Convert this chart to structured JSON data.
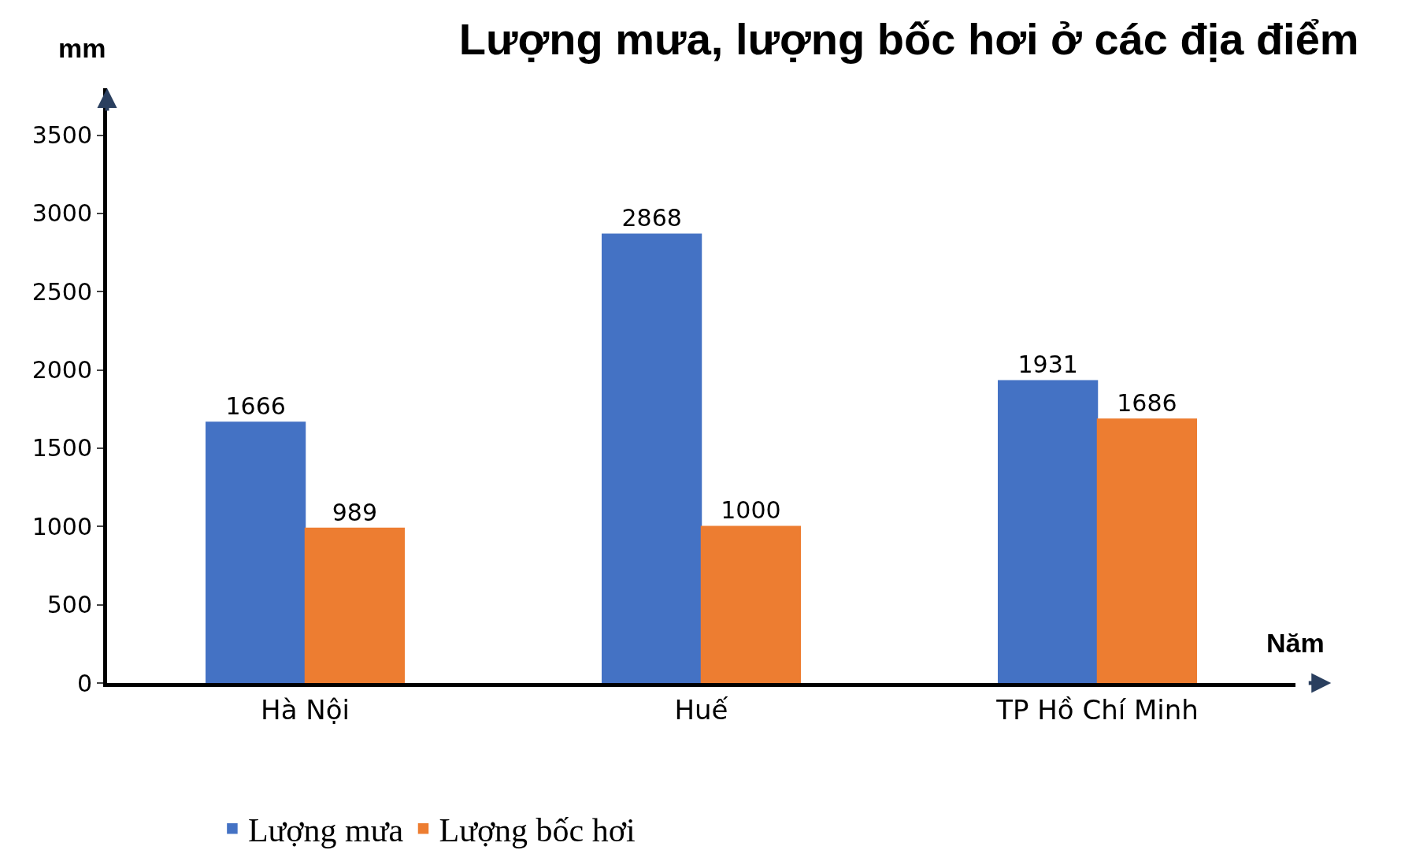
{
  "chart_data": {
    "type": "bar",
    "title": "Lượng mưa, lượng bốc hơi ở các địa điểm",
    "ylabel": "mm",
    "xlabel": "Năm",
    "categories": [
      "Hà Nội",
      "Huế",
      "TP Hồ Chí Minh"
    ],
    "series": [
      {
        "name": "Lượng mưa",
        "color": "#4472c4",
        "values": [
          1666,
          2868,
          1931
        ]
      },
      {
        "name": "Lượng bốc hơi",
        "color": "#ed7d31",
        "values": [
          989,
          1000,
          1686
        ]
      }
    ],
    "ylim": [
      0,
      3800
    ],
    "yticks": [
      0,
      500,
      1000,
      1500,
      2000,
      2500,
      3000,
      3500
    ],
    "data_labels": true,
    "legend": "bottom"
  }
}
